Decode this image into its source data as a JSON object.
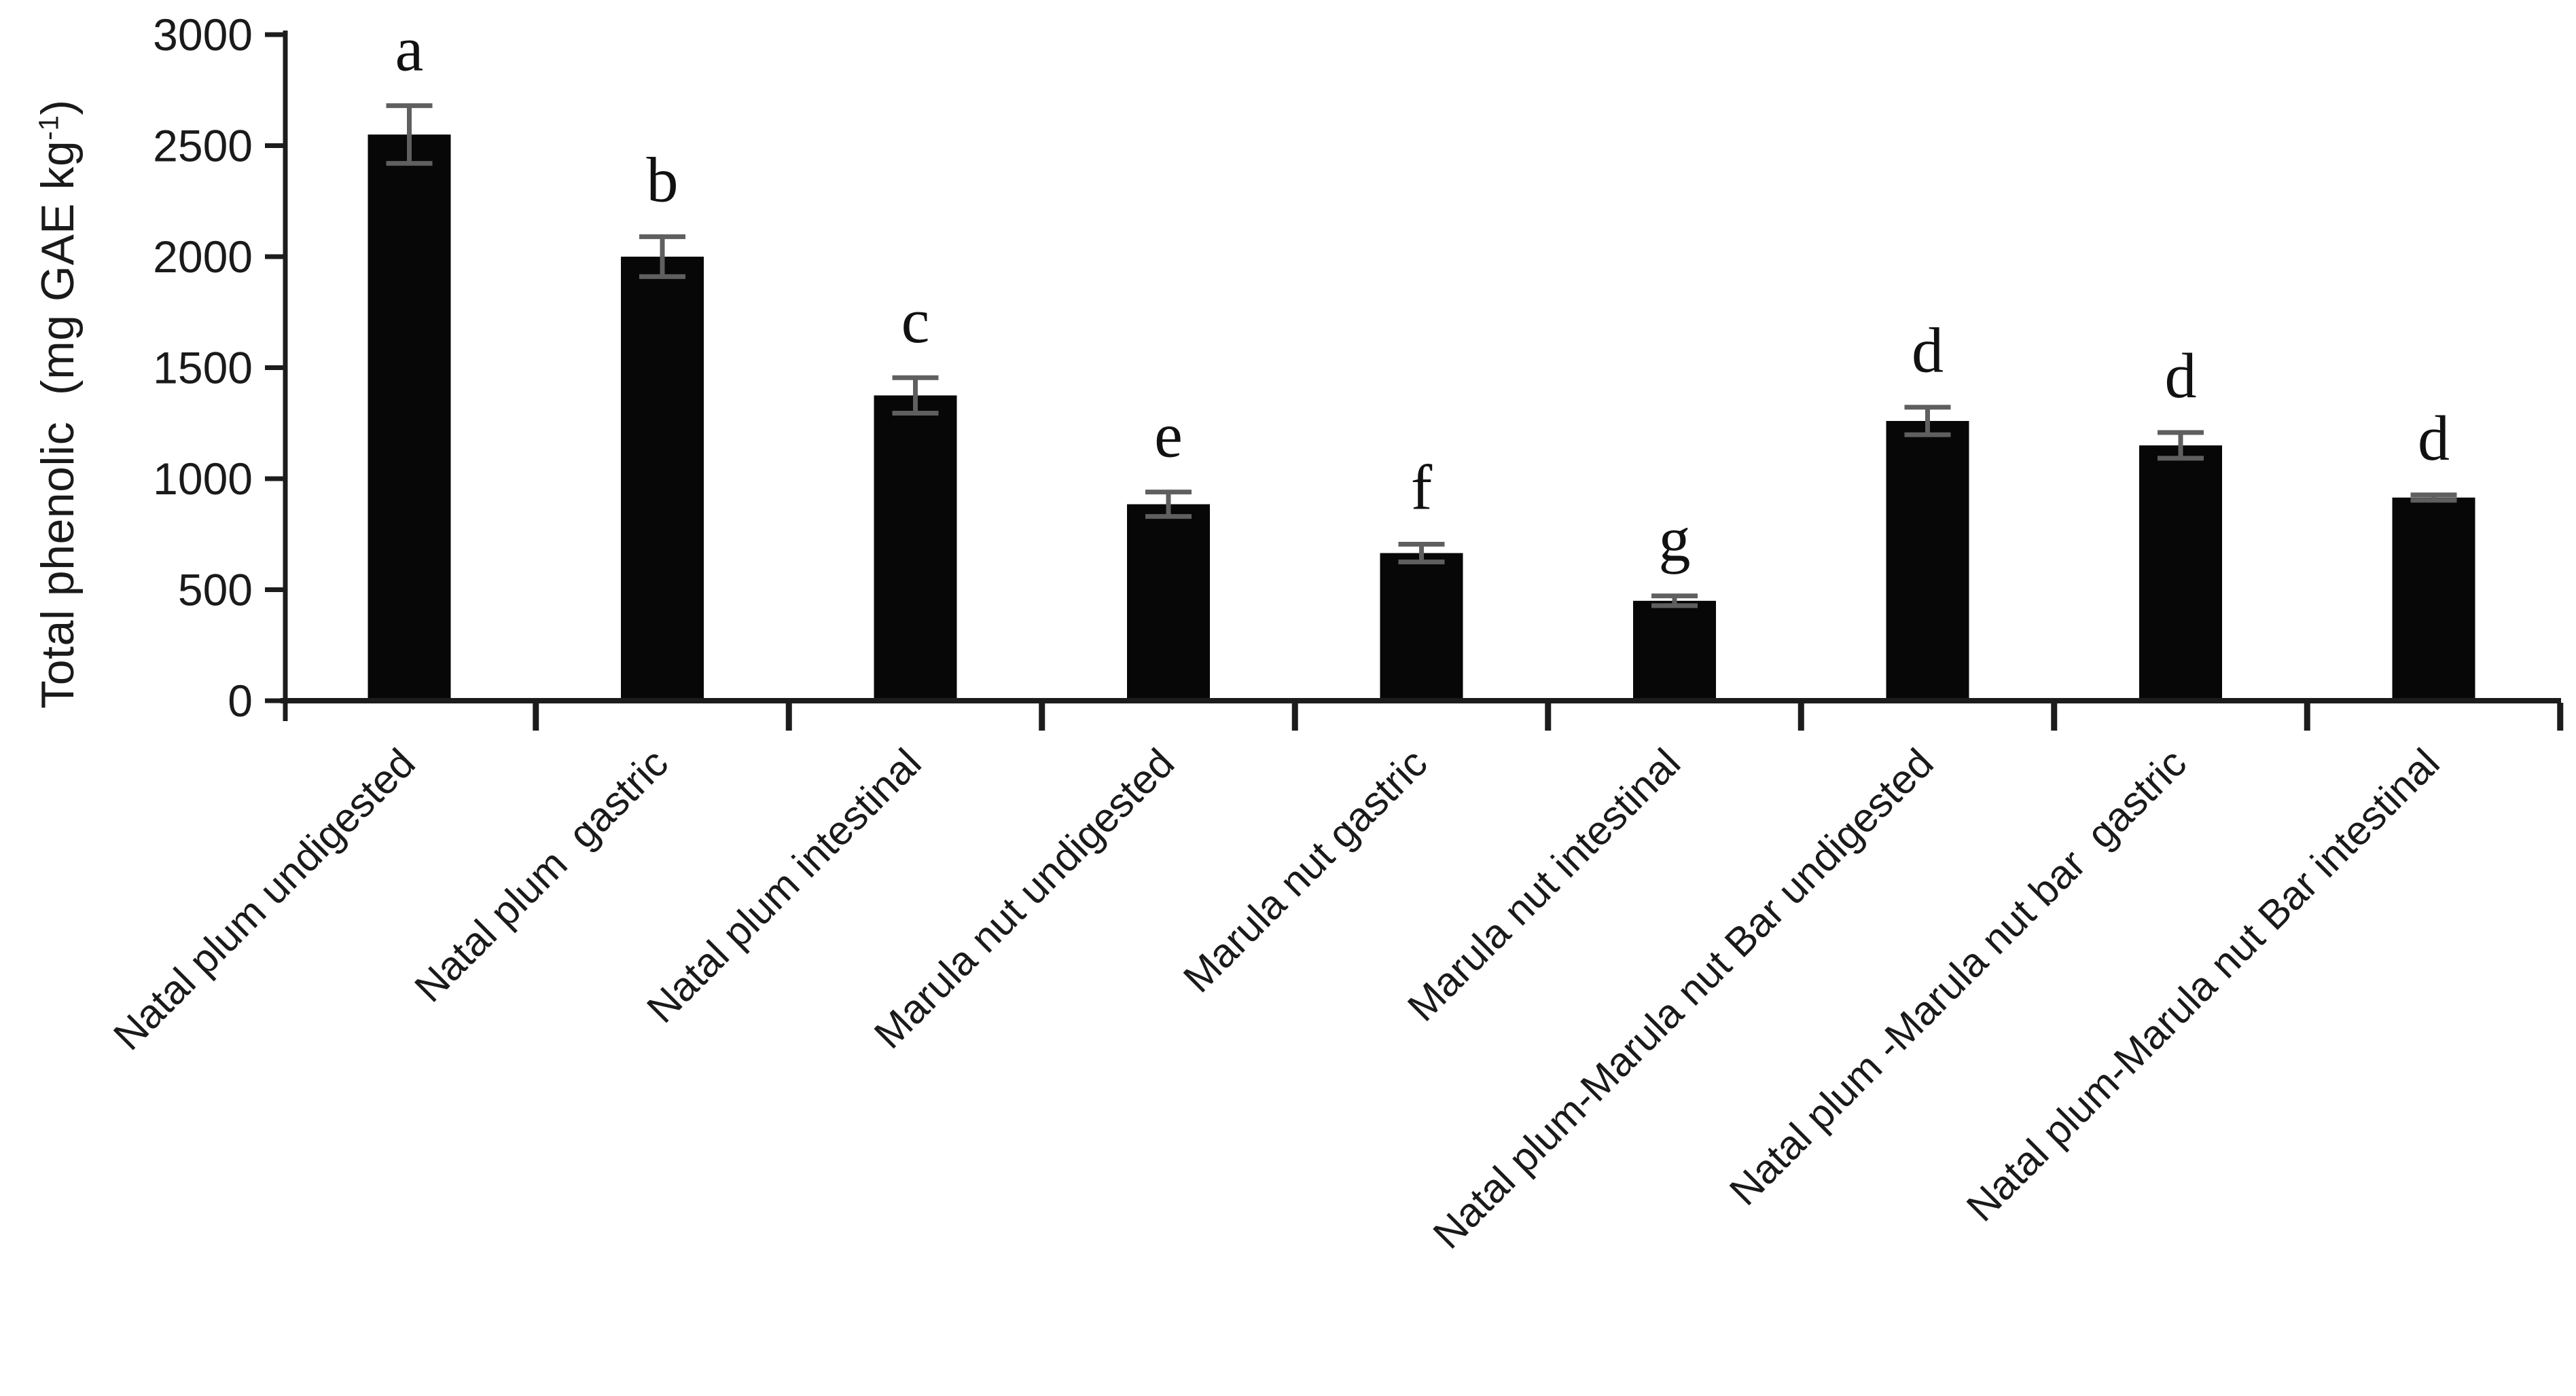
{
  "figure": {
    "background": "#ffffff",
    "text_color": "#1a1a1a"
  },
  "chart_data": {
    "type": "bar",
    "title": "",
    "xlabel": "",
    "ylabel_main": "Total phenolic  (mg GAE kg",
    "ylabel_sup": "-1",
    "ylabel_close": ")",
    "ylabel_plain": "Total phenolic (mg GAE kg-1)",
    "ylim": [
      0,
      3000
    ],
    "ytick_interval": 500,
    "ytick_labels": [
      "0",
      "500",
      "1000",
      "1500",
      "2000",
      "2500",
      "3000"
    ],
    "grid": false,
    "legend": "none",
    "bar_color": "#070707",
    "error_bar_color": "#5f5f5f",
    "axis_color": "#1c1c1c",
    "categories": [
      "Natal plum undigested",
      "Natal plum  gastric",
      "Natal plum intestinal",
      "Marula nut undigested",
      "Marula nut gastric",
      "Marula nut intestinal",
      "Natal plum-Marula nut Bar undigested",
      "Natal plum -Marula nut bar  gastric",
      "Natal plum-Marula nut Bar intestinal"
    ],
    "values": [
      2550,
      2000,
      1375,
      885,
      665,
      450,
      1260,
      1150,
      915
    ],
    "errors": [
      130,
      90,
      80,
      55,
      40,
      22,
      62,
      58,
      12
    ],
    "sig_letters": [
      "a",
      "b",
      "c",
      "e",
      "f",
      "g",
      "d",
      "d",
      "d"
    ]
  }
}
